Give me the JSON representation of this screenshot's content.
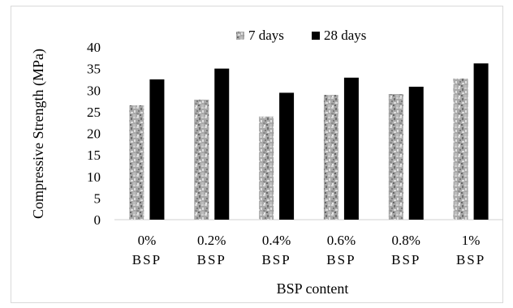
{
  "chart_data": {
    "type": "bar",
    "categories": [
      "0%\nBSP",
      "0.2%\nBSP",
      "0.4%\nBSP",
      "0.6%\nBSP",
      "0.8%\nBSP",
      "1%\nBSP"
    ],
    "series": [
      {
        "name": "7 days",
        "values": [
          26.5,
          27.8,
          23.9,
          28.9,
          29.1,
          32.7
        ],
        "color": "#a6a6a6",
        "pattern": "granite"
      },
      {
        "name": "28 days",
        "values": [
          32.5,
          35.0,
          29.4,
          32.9,
          30.8,
          36.2
        ],
        "color": "#000000"
      }
    ],
    "xlabel": "BSP content",
    "ylabel": "Compressive Strength (MPa)",
    "ylim": [
      0,
      40
    ],
    "yticks": [
      0,
      5,
      10,
      15,
      20,
      25,
      30,
      35,
      40
    ],
    "grid": false,
    "legend": "top-center"
  }
}
